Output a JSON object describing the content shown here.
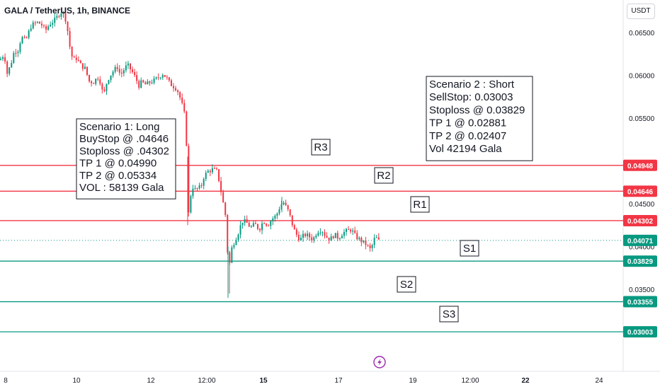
{
  "header": {
    "symbol": "GALA / TetherUS, 1h, BINANCE",
    "currency": "USDT"
  },
  "chart_data": {
    "type": "candlestick",
    "symbol": "GALA / TetherUS",
    "interval": "1h",
    "exchange": "BINANCE",
    "y_axis": {
      "ticks": [
        "0.06500",
        "0.06000",
        "0.05500",
        "0.04500",
        "0.04000",
        "0.03500"
      ],
      "tick_values": [
        0.065,
        0.06,
        0.055,
        0.045,
        0.04,
        0.035
      ],
      "range": [
        0.0285,
        0.0685
      ]
    },
    "x_axis": {
      "ticks": [
        "8",
        "10",
        "12",
        "12:00",
        "15",
        "17",
        "19",
        "12:00",
        "22",
        "24"
      ],
      "bold_ticks": [
        "15",
        "22"
      ]
    },
    "last_price": 0.04071,
    "levels": [
      {
        "label": "R3",
        "price": 0.04948,
        "price_label": "0.04948",
        "color": "#f23645"
      },
      {
        "label": "R2",
        "price": 0.04646,
        "price_label": "0.04646",
        "color": "#f23645"
      },
      {
        "label": "R1",
        "price": 0.04302,
        "price_label": "0.04302",
        "color": "#f23645"
      },
      {
        "label": "S1",
        "price": 0.03829,
        "price_label": "0.03829",
        "color": "#089981"
      },
      {
        "label": "S2",
        "price": 0.03355,
        "price_label": "0.03355",
        "color": "#089981"
      },
      {
        "label": "S3",
        "price": 0.03003,
        "price_label": "0.03003",
        "color": "#089981"
      }
    ],
    "last_price_label": "0.04071",
    "annotations": [
      {
        "name": "scenario-1",
        "lines": [
          "Scenario 1: Long",
          "BuyStop @ .04646",
          "Stoploss @ .04302",
          "TP 1 @  0.04990",
          "TP 2 @  0.05334",
          "VOL : 58139  Gala"
        ]
      },
      {
        "name": "scenario-2",
        "lines": [
          "Scenario 2 : Short",
          "SellStop: 0.03003",
          "Stoploss @ 0.03829",
          "TP 1 @  0.02881",
          "TP 2 @ 0.02407",
          "Vol  42194 Gala"
        ]
      }
    ],
    "colors": {
      "up": "#089981",
      "down": "#f23645",
      "resistance": "#f23645",
      "support": "#089981"
    },
    "path": [
      [
        0,
        0.0618
      ],
      [
        6,
        0.0625
      ],
      [
        10,
        0.0602
      ],
      [
        15,
        0.0612
      ],
      [
        20,
        0.0628
      ],
      [
        26,
        0.063
      ],
      [
        30,
        0.0645
      ],
      [
        36,
        0.064
      ],
      [
        44,
        0.0658
      ],
      [
        52,
        0.0662
      ],
      [
        58,
        0.066
      ],
      [
        64,
        0.0652
      ],
      [
        70,
        0.066
      ],
      [
        78,
        0.0665
      ],
      [
        84,
        0.0672
      ],
      [
        88,
        0.0675
      ],
      [
        92,
        0.0668
      ],
      [
        96,
        0.065
      ],
      [
        100,
        0.0625
      ],
      [
        104,
        0.0618
      ],
      [
        108,
        0.062
      ],
      [
        114,
        0.0612
      ],
      [
        120,
        0.0608
      ],
      [
        126,
        0.0593
      ],
      [
        132,
        0.0592
      ],
      [
        138,
        0.0598
      ],
      [
        142,
        0.0592
      ],
      [
        146,
        0.0575
      ],
      [
        150,
        0.059
      ],
      [
        154,
        0.0598
      ],
      [
        160,
        0.0605
      ],
      [
        166,
        0.061
      ],
      [
        170,
        0.06
      ],
      [
        176,
        0.0608
      ],
      [
        180,
        0.0612
      ],
      [
        186,
        0.0605
      ],
      [
        192,
        0.0596
      ],
      [
        196,
        0.0588
      ],
      [
        200,
        0.0592
      ],
      [
        206,
        0.0589
      ],
      [
        212,
        0.0592
      ],
      [
        218,
        0.0594
      ],
      [
        224,
        0.0598
      ],
      [
        230,
        0.0602
      ],
      [
        236,
        0.0596
      ],
      [
        240,
        0.059
      ],
      [
        244,
        0.0588
      ],
      [
        250,
        0.0584
      ],
      [
        255,
        0.0572
      ],
      [
        259,
        0.056
      ],
      [
        262,
        0.0548
      ],
      [
        264,
        0.0505
      ],
      [
        266,
        0.0435
      ],
      [
        268,
        0.0455
      ],
      [
        272,
        0.047
      ],
      [
        276,
        0.0466
      ],
      [
        280,
        0.0468
      ],
      [
        284,
        0.047
      ],
      [
        288,
        0.0482
      ],
      [
        294,
        0.0488
      ],
      [
        300,
        0.049
      ],
      [
        306,
        0.0488
      ],
      [
        310,
        0.0475
      ],
      [
        314,
        0.0455
      ],
      [
        318,
        0.044
      ],
      [
        320,
        0.041
      ],
      [
        322,
        0.0385
      ],
      [
        324,
        0.0378
      ],
      [
        326,
        0.0395
      ],
      [
        330,
        0.0404
      ],
      [
        336,
        0.0415
      ],
      [
        342,
        0.043
      ],
      [
        348,
        0.0428
      ],
      [
        354,
        0.0422
      ],
      [
        360,
        0.0426
      ],
      [
        366,
        0.042
      ],
      [
        372,
        0.043
      ],
      [
        378,
        0.0425
      ],
      [
        384,
        0.0432
      ],
      [
        390,
        0.0436
      ],
      [
        396,
        0.0448
      ],
      [
        400,
        0.0452
      ],
      [
        404,
        0.0446
      ],
      [
        408,
        0.044
      ],
      [
        412,
        0.0428
      ],
      [
        416,
        0.0418
      ],
      [
        420,
        0.0412
      ],
      [
        424,
        0.0408
      ],
      [
        430,
        0.0414
      ],
      [
        436,
        0.0412
      ],
      [
        442,
        0.0408
      ],
      [
        448,
        0.0418
      ],
      [
        454,
        0.042
      ],
      [
        460,
        0.0412
      ],
      [
        466,
        0.0408
      ],
      [
        472,
        0.0414
      ],
      [
        478,
        0.041
      ],
      [
        484,
        0.0416
      ],
      [
        490,
        0.0418
      ],
      [
        496,
        0.042
      ],
      [
        502,
        0.0412
      ],
      [
        508,
        0.0408
      ],
      [
        514,
        0.0404
      ],
      [
        518,
        0.0402
      ],
      [
        522,
        0.0396
      ],
      [
        526,
        0.0402
      ],
      [
        530,
        0.0412
      ],
      [
        534,
        0.0406
      ],
      [
        537,
        0.0408
      ]
    ]
  }
}
